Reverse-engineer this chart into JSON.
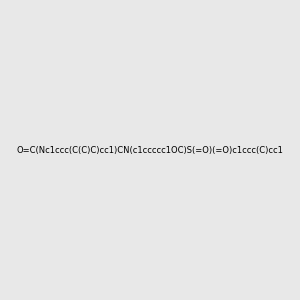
{
  "smiles": "O=C(Nc1ccc(C(C)C)cc1)CN(c1ccccc1OC)S(=O)(=O)c1ccc(C)cc1",
  "title": "",
  "bg_color": "#e8e8e8",
  "fig_width": 3.0,
  "fig_height": 3.0,
  "dpi": 100
}
